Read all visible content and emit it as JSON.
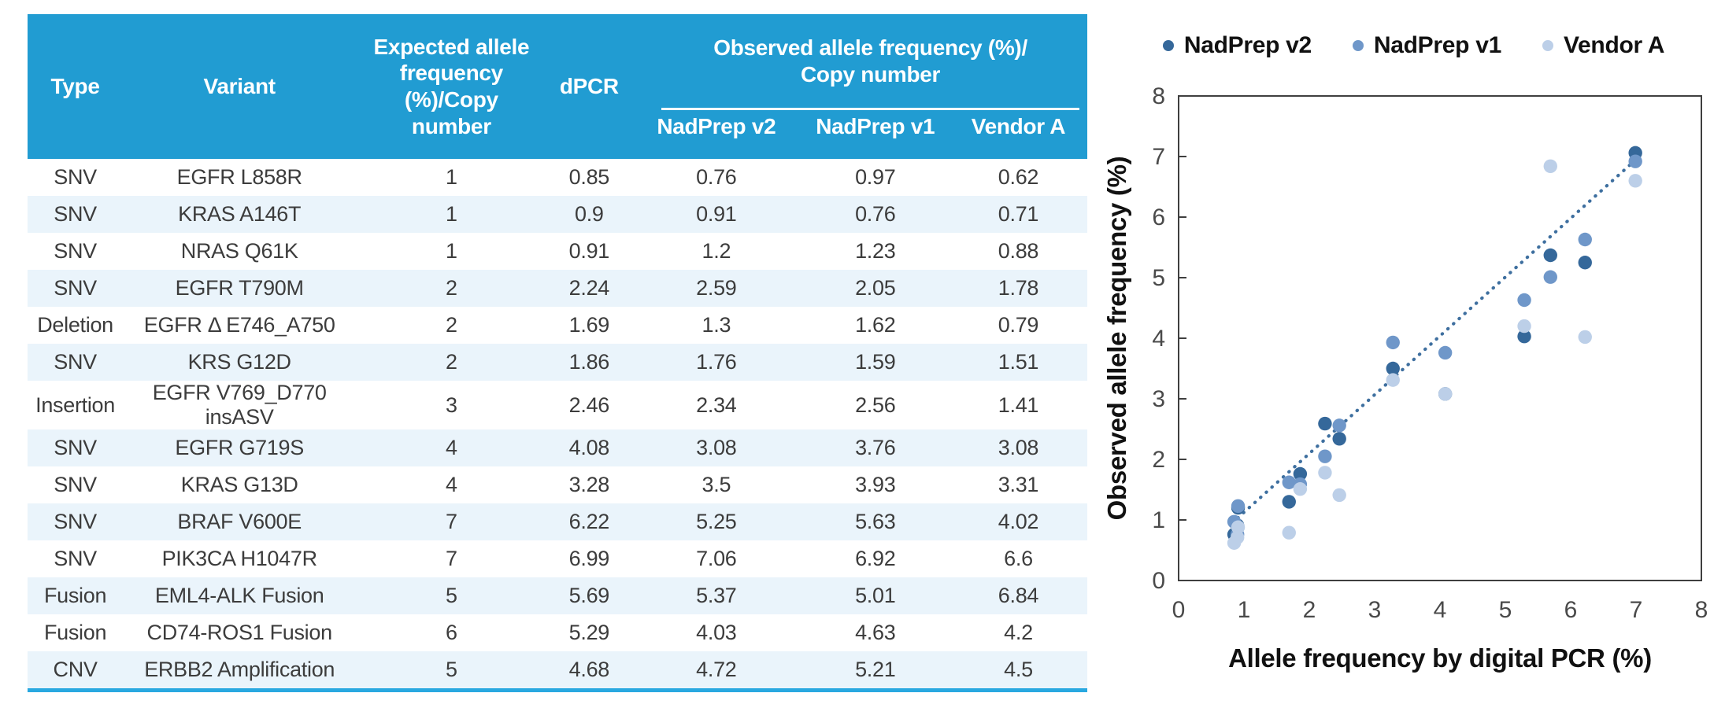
{
  "table": {
    "columns": {
      "type": "Type",
      "variant": "Variant",
      "expected": "Expected allele\nfrequency\n(%)/Copy\nnumber",
      "dpcr": "dPCR",
      "observed_group": "Observed allele frequency (%)/\nCopy number",
      "nadprep_v2": "NadPrep v2",
      "nadprep_v1": "NadPrep v1",
      "vendor_a": "Vendor A"
    },
    "rows": [
      {
        "type": "SNV",
        "variant": "EGFR L858R",
        "expected": "1",
        "dpcr": "0.85",
        "v2": "0.76",
        "v1": "0.97",
        "a": "0.62"
      },
      {
        "type": "SNV",
        "variant": "KRAS A146T",
        "expected": "1",
        "dpcr": "0.9",
        "v2": "0.91",
        "v1": "0.76",
        "a": "0.71"
      },
      {
        "type": "SNV",
        "variant": "NRAS Q61K",
        "expected": "1",
        "dpcr": "0.91",
        "v2": "1.2",
        "v1": "1.23",
        "a": "0.88"
      },
      {
        "type": "SNV",
        "variant": "EGFR T790M",
        "expected": "2",
        "dpcr": "2.24",
        "v2": "2.59",
        "v1": "2.05",
        "a": "1.78"
      },
      {
        "type": "Deletion",
        "variant": "EGFR Δ E746_A750",
        "expected": "2",
        "dpcr": "1.69",
        "v2": "1.3",
        "v1": "1.62",
        "a": "0.79"
      },
      {
        "type": "SNV",
        "variant": "KRS G12D",
        "expected": "2",
        "dpcr": "1.86",
        "v2": "1.76",
        "v1": "1.59",
        "a": "1.51"
      },
      {
        "type": "Insertion",
        "variant": "EGFR V769_D770 insASV",
        "expected": "3",
        "dpcr": "2.46",
        "v2": "2.34",
        "v1": "2.56",
        "a": "1.41"
      },
      {
        "type": "SNV",
        "variant": "EGFR G719S",
        "expected": "4",
        "dpcr": "4.08",
        "v2": "3.08",
        "v1": "3.76",
        "a": "3.08"
      },
      {
        "type": "SNV",
        "variant": "KRAS G13D",
        "expected": "4",
        "dpcr": "3.28",
        "v2": "3.5",
        "v1": "3.93",
        "a": "3.31"
      },
      {
        "type": "SNV",
        "variant": "BRAF V600E",
        "expected": "7",
        "dpcr": "6.22",
        "v2": "5.25",
        "v1": "5.63",
        "a": "4.02"
      },
      {
        "type": "SNV",
        "variant": "PIK3CA H1047R",
        "expected": "7",
        "dpcr": "6.99",
        "v2": "7.06",
        "v1": "6.92",
        "a": "6.6"
      },
      {
        "type": "Fusion",
        "variant": "EML4-ALK Fusion",
        "expected": "5",
        "dpcr": "5.69",
        "v2": "5.37",
        "v1": "5.01",
        "a": "6.84"
      },
      {
        "type": "Fusion",
        "variant": "CD74-ROS1 Fusion",
        "expected": "6",
        "dpcr": "5.29",
        "v2": "4.03",
        "v1": "4.63",
        "a": "4.2"
      },
      {
        "type": "CNV",
        "variant": "ERBB2 Amplification",
        "expected": "5",
        "dpcr": "4.68",
        "v2": "4.72",
        "v1": "5.21",
        "a": "4.5"
      }
    ],
    "colors": {
      "header_bg": "#219CD2",
      "header_text": "#FFFFFF",
      "alt_row_bg": "#EAF4FB",
      "body_text": "#3C3C3C",
      "bottom_border": "#29A8E0"
    }
  },
  "chart_data": {
    "type": "scatter",
    "xlabel": "Allele frequency by digital PCR (%)",
    "ylabel": "Observed allele frequency (%)",
    "xlim": [
      0,
      8
    ],
    "ylim": [
      0,
      8
    ],
    "x_ticks": [
      0,
      1,
      2,
      3,
      4,
      5,
      6,
      7,
      8
    ],
    "y_ticks": [
      0,
      1,
      2,
      3,
      4,
      5,
      6,
      7,
      8
    ],
    "grid": false,
    "legend_position": "top",
    "x": [
      0.85,
      0.9,
      0.91,
      2.24,
      1.69,
      1.86,
      2.46,
      4.08,
      3.28,
      6.22,
      6.99,
      5.69,
      5.29
    ],
    "series": [
      {
        "name": "NadPrep v2",
        "color": "#35689A",
        "y": [
          0.76,
          0.91,
          1.2,
          2.59,
          1.3,
          1.76,
          2.34,
          3.08,
          3.5,
          5.25,
          7.06,
          5.37,
          4.03
        ]
      },
      {
        "name": "NadPrep v1",
        "color": "#6F97C9",
        "y": [
          0.97,
          0.76,
          1.23,
          2.05,
          1.62,
          1.59,
          2.56,
          3.76,
          3.93,
          5.63,
          6.92,
          5.01,
          4.63
        ]
      },
      {
        "name": "Vendor A",
        "color": "#BCCFE8",
        "y": [
          0.62,
          0.71,
          0.88,
          1.78,
          0.79,
          1.51,
          1.41,
          3.08,
          3.31,
          4.02,
          6.6,
          6.84,
          4.2
        ]
      }
    ],
    "excluded_rows": [
      "ERBB2 Amplification"
    ],
    "trendline": {
      "style": "dotted",
      "color": "#3E6F9F",
      "x1": 0.82,
      "y1": 0.95,
      "x2": 7.05,
      "y2": 7.0
    }
  }
}
